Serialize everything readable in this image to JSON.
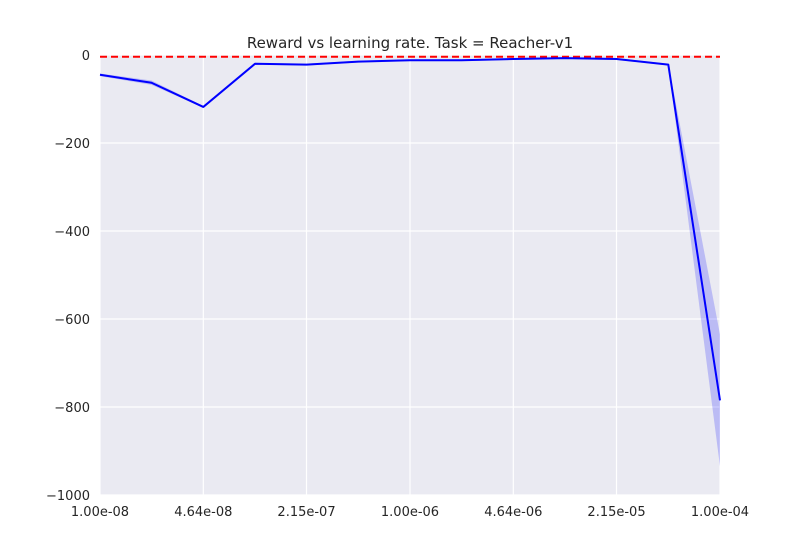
{
  "chart_data": {
    "type": "line",
    "title": "Reward vs learning rate. Task = Reacher-v1",
    "xlabel": "",
    "ylabel": "",
    "x_scale": "log",
    "xlim": [
      1e-08,
      0.0001
    ],
    "ylim": [
      -1000,
      0
    ],
    "grid": true,
    "legend": "none",
    "x_ticks": [
      1e-08,
      4.64e-08,
      2.15e-07,
      1e-06,
      4.64e-06,
      2.15e-05,
      0.0001
    ],
    "x_tick_labels": [
      "1.00e-08",
      "4.64e-08",
      "2.15e-07",
      "1.00e-06",
      "4.64e-06",
      "2.15e-05",
      "1.00e-04"
    ],
    "y_ticks": [
      0,
      -200,
      -400,
      -600,
      -800,
      -1000
    ],
    "y_tick_labels": [
      "0",
      "−200",
      "−400",
      "−600",
      "−800",
      "−1000"
    ],
    "series": [
      {
        "color": "#0000ff",
        "band_color": "#0000ff",
        "x": [
          1e-08,
          2.15e-08,
          4.64e-08,
          1e-07,
          2.15e-07,
          4.64e-07,
          1e-06,
          2.15e-06,
          4.64e-06,
          1e-05,
          2.15e-05,
          4.64e-05,
          0.0001
        ],
        "y": [
          -45,
          -63,
          -118,
          -20,
          -22,
          -15,
          -12,
          -12,
          -9,
          -7,
          -9,
          -22,
          -785
        ],
        "y_lower": [
          -48,
          -68,
          -120,
          -22,
          -24,
          -17,
          -14,
          -14,
          -11,
          -9,
          -11,
          -24,
          -935
        ],
        "y_upper": [
          -42,
          -58,
          -116,
          -18,
          -20,
          -13,
          -10,
          -10,
          -7,
          -5,
          -7,
          -20,
          -635
        ]
      }
    ],
    "reference_lines": [
      {
        "y": -4,
        "color": "#ff0000",
        "style": "dashed"
      }
    ]
  }
}
